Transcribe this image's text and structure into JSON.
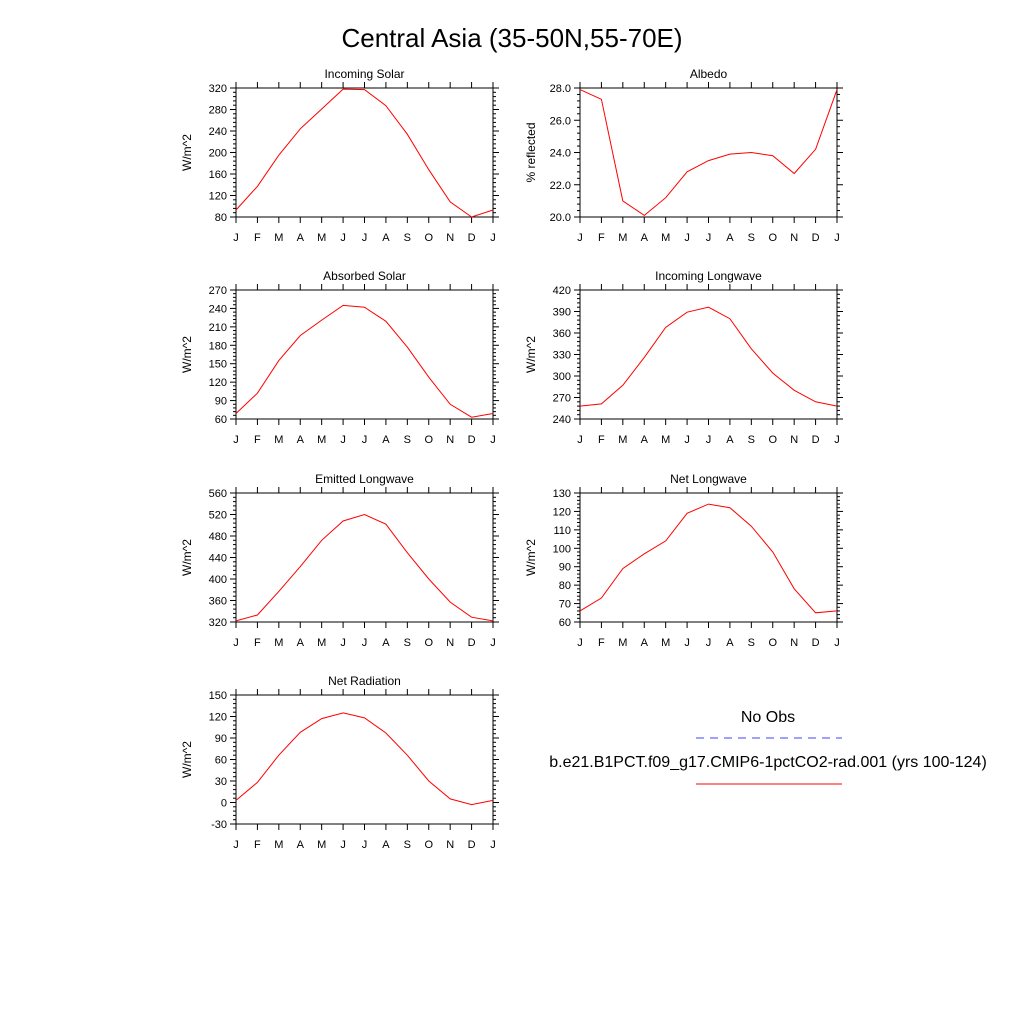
{
  "title": "Central Asia (35-50N,55-70E)",
  "months": [
    "J",
    "F",
    "M",
    "A",
    "M",
    "J",
    "J",
    "A",
    "S",
    "O",
    "N",
    "D",
    "J"
  ],
  "legend": {
    "obs_label": "No Obs",
    "obs_color": "#4040ff",
    "model_label": "b.e21.B1PCT.f09_g17.CMIP6-1pctCO2-rad.001 (yrs 100-124)",
    "model_color": "#ff0000"
  },
  "chart_data": [
    {
      "type": "line",
      "title": "Incoming Solar",
      "ylabel": "W/m^2",
      "x": [
        "J",
        "F",
        "M",
        "A",
        "M",
        "J",
        "J",
        "A",
        "S",
        "O",
        "N",
        "D",
        "J"
      ],
      "ylim": [
        80,
        320
      ],
      "yticks": [
        80,
        120,
        160,
        200,
        240,
        280,
        320
      ],
      "ytick_labels": [
        "80",
        "120",
        "160",
        "200",
        "240",
        "280",
        "320"
      ],
      "series": [
        {
          "values": [
            93,
            137,
            195,
            244,
            281,
            318,
            317,
            287,
            234,
            168,
            108,
            80,
            93
          ]
        }
      ]
    },
    {
      "type": "line",
      "title": "Albedo",
      "ylabel": "% reflected",
      "x": [
        "J",
        "F",
        "M",
        "A",
        "M",
        "J",
        "J",
        "A",
        "S",
        "O",
        "N",
        "D",
        "J"
      ],
      "ylim": [
        20,
        28
      ],
      "yticks": [
        20,
        22,
        24,
        26,
        28
      ],
      "ytick_labels": [
        "20.0",
        "22.0",
        "24.0",
        "26.0",
        "28.0"
      ],
      "series": [
        {
          "values": [
            27.9,
            27.3,
            21.0,
            20.1,
            21.2,
            22.8,
            23.5,
            23.9,
            24.0,
            23.8,
            22.7,
            24.2,
            27.9
          ]
        }
      ]
    },
    {
      "type": "line",
      "title": "Absorbed Solar",
      "ylabel": "W/m^2",
      "x": [
        "J",
        "F",
        "M",
        "A",
        "M",
        "J",
        "J",
        "A",
        "S",
        "O",
        "N",
        "D",
        "J"
      ],
      "ylim": [
        60,
        270
      ],
      "yticks": [
        60,
        90,
        120,
        150,
        180,
        210,
        240,
        270
      ],
      "ytick_labels": [
        "60",
        "90",
        "120",
        "150",
        "180",
        "210",
        "240",
        "270"
      ],
      "series": [
        {
          "values": [
            69,
            102,
            155,
            196,
            221,
            245,
            242,
            219,
            177,
            128,
            84,
            63,
            69
          ]
        }
      ]
    },
    {
      "type": "line",
      "title": "Incoming Longwave",
      "ylabel": "W/m^2",
      "x": [
        "J",
        "F",
        "M",
        "A",
        "M",
        "J",
        "J",
        "A",
        "S",
        "O",
        "N",
        "D",
        "J"
      ],
      "ylim": [
        240,
        420
      ],
      "yticks": [
        240,
        270,
        300,
        330,
        360,
        390,
        420
      ],
      "ytick_labels": [
        "240",
        "270",
        "300",
        "330",
        "360",
        "390",
        "420"
      ],
      "series": [
        {
          "values": [
            258,
            261,
            287,
            326,
            368,
            389,
            396,
            380,
            338,
            304,
            280,
            264,
            258
          ]
        }
      ]
    },
    {
      "type": "line",
      "title": "Emitted Longwave",
      "ylabel": "W/m^2",
      "x": [
        "J",
        "F",
        "M",
        "A",
        "M",
        "J",
        "J",
        "A",
        "S",
        "O",
        "N",
        "D",
        "J"
      ],
      "ylim": [
        320,
        560
      ],
      "yticks": [
        320,
        360,
        400,
        440,
        480,
        520,
        560
      ],
      "ytick_labels": [
        "320",
        "360",
        "400",
        "440",
        "480",
        "520",
        "560"
      ],
      "series": [
        {
          "values": [
            322,
            333,
            377,
            423,
            472,
            508,
            520,
            502,
            449,
            400,
            357,
            329,
            322
          ]
        }
      ]
    },
    {
      "type": "line",
      "title": "Net Longwave",
      "ylabel": "W/m^2",
      "x": [
        "J",
        "F",
        "M",
        "A",
        "M",
        "J",
        "J",
        "A",
        "S",
        "O",
        "N",
        "D",
        "J"
      ],
      "ylim": [
        60,
        130
      ],
      "yticks": [
        60,
        70,
        80,
        90,
        100,
        110,
        120,
        130
      ],
      "ytick_labels": [
        "60",
        "70",
        "80",
        "90",
        "100",
        "110",
        "120",
        "130"
      ],
      "series": [
        {
          "values": [
            66,
            73,
            89,
            97,
            104,
            119,
            124,
            122,
            112,
            98,
            78,
            65,
            66
          ]
        }
      ]
    },
    {
      "type": "line",
      "title": "Net Radiation",
      "ylabel": "W/m^2",
      "x": [
        "J",
        "F",
        "M",
        "A",
        "M",
        "J",
        "J",
        "A",
        "S",
        "O",
        "N",
        "D",
        "J"
      ],
      "ylim": [
        -30,
        150
      ],
      "yticks": [
        -30,
        0,
        30,
        60,
        90,
        120,
        150
      ],
      "ytick_labels": [
        "-30",
        "0",
        "30",
        "60",
        "90",
        "120",
        "150"
      ],
      "series": [
        {
          "values": [
            3,
            28,
            66,
            98,
            117,
            125,
            118,
            97,
            66,
            30,
            5,
            -3,
            3
          ]
        }
      ]
    }
  ]
}
